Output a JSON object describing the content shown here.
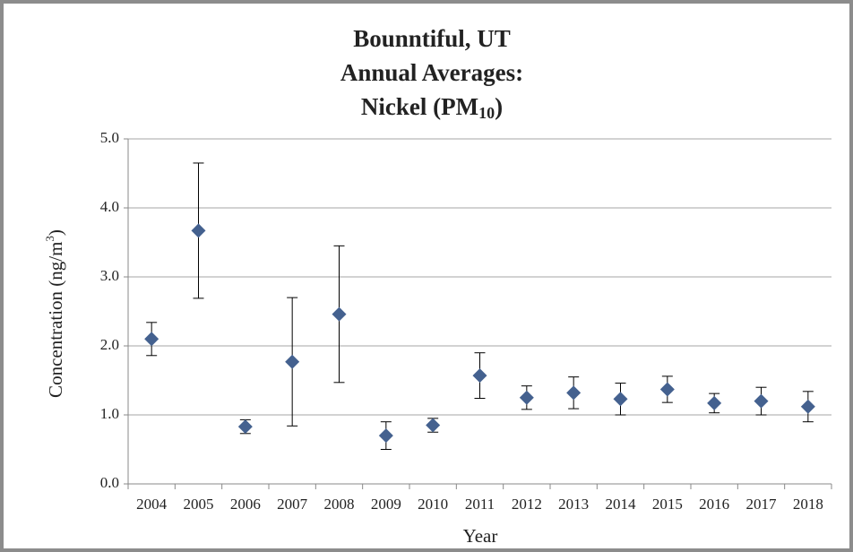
{
  "chart_data": {
    "type": "errorbar",
    "title": {
      "lines": [
        "Bounntiful, UT",
        "Annual Averages:",
        "Nickel (PM"
      ],
      "subscript": "10",
      "suffix": ")"
    },
    "ylabel": {
      "text": "Concentration (ng/m",
      "superscript": "3",
      "suffix": ")"
    },
    "xlabel": "Year",
    "categories": [
      "2004",
      "2005",
      "2006",
      "2007",
      "2008",
      "2009",
      "2010",
      "2011",
      "2012",
      "2013",
      "2014",
      "2015",
      "2016",
      "2017",
      "2018"
    ],
    "values": [
      2.1,
      3.67,
      0.83,
      1.77,
      2.46,
      0.7,
      0.85,
      1.57,
      1.25,
      1.32,
      1.23,
      1.37,
      1.17,
      1.2,
      1.12
    ],
    "errors": [
      0.24,
      0.98,
      0.1,
      0.93,
      0.99,
      0.2,
      0.1,
      0.33,
      0.17,
      0.23,
      0.23,
      0.19,
      0.14,
      0.2,
      0.22
    ],
    "color": "#44618f",
    "ylim": [
      0,
      5
    ],
    "yticks": [
      {
        "value": 0,
        "label": "0.0"
      },
      {
        "value": 1,
        "label": "1.0"
      },
      {
        "value": 2,
        "label": "2.0"
      },
      {
        "value": 3,
        "label": "3.0"
      },
      {
        "value": 4,
        "label": "4.0"
      },
      {
        "value": 5,
        "label": "5.0"
      }
    ],
    "grid": true
  }
}
